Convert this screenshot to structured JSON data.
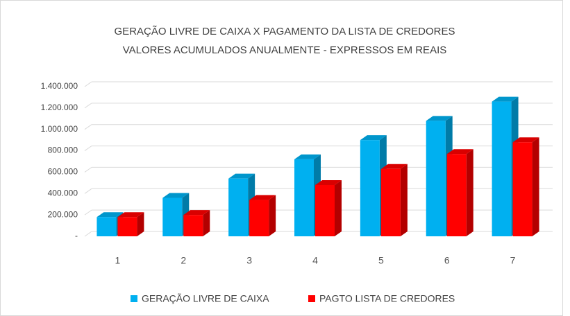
{
  "chart_data": {
    "type": "bar3d",
    "title": [
      "GERAÇÃO LIVRE DE CAIXA X PAGAMENTO DA LISTA DE CREDORES",
      "VALORES ACUMULADOS ANUALMENTE - EXPRESSOS EM REAIS"
    ],
    "categories": [
      "1",
      "2",
      "3",
      "4",
      "5",
      "6",
      "7"
    ],
    "series": [
      {
        "name": "GERAÇÃO LIVRE DE CAIXA",
        "color": "#00b0f0",
        "values": [
          180000,
          360000,
          540000,
          720000,
          900000,
          1080000,
          1260000
        ]
      },
      {
        "name": "PAGTO LISTA DE CREDORES",
        "color": "#ff0000",
        "values": [
          180000,
          200000,
          340000,
          480000,
          630000,
          770000,
          880000
        ]
      }
    ],
    "ylim": [
      0,
      1400000
    ],
    "yticks": [
      {
        "value": 0,
        "label": "-"
      },
      {
        "value": 200000,
        "label": "200.000"
      },
      {
        "value": 400000,
        "label": "400.000"
      },
      {
        "value": 600000,
        "label": "600.000"
      },
      {
        "value": 800000,
        "label": "800.000"
      },
      {
        "value": 1000000,
        "label": "1.000.000"
      },
      {
        "value": 1200000,
        "label": "1.200.000"
      },
      {
        "value": 1400000,
        "label": "1.400.000"
      }
    ],
    "grid": true,
    "legend": "bottom"
  }
}
